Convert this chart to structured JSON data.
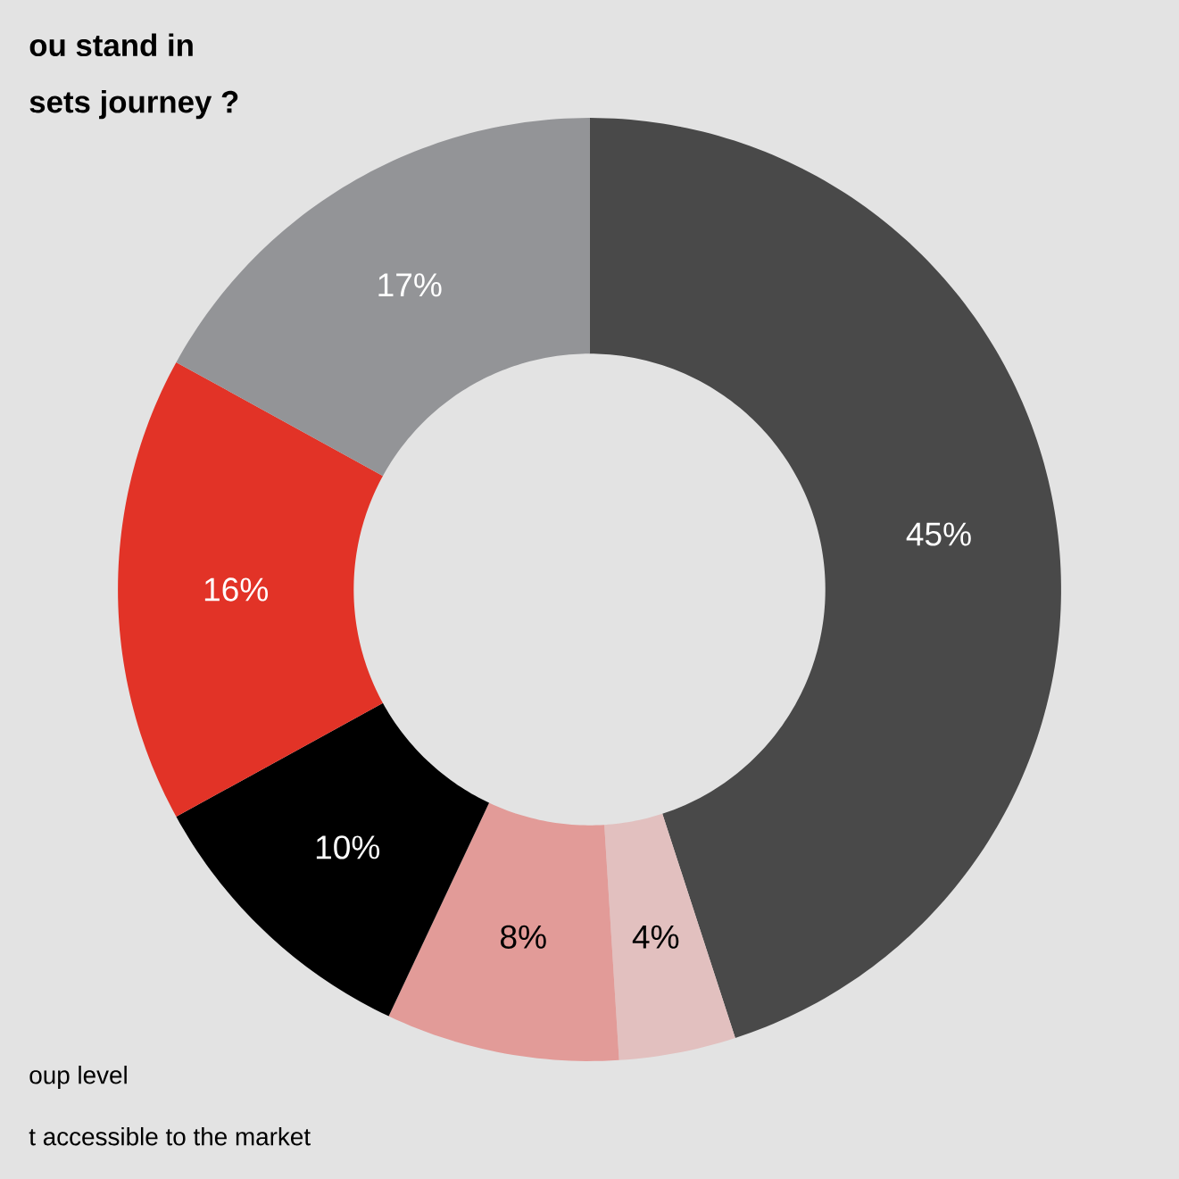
{
  "chart_data": {
    "type": "donut",
    "title": "ou stand in",
    "subtitle": "sets journey ?",
    "categories": [
      null,
      null,
      null,
      null,
      null,
      null
    ],
    "values": [
      45,
      4,
      8,
      10,
      16,
      17
    ],
    "colors": [
      "#494949",
      "#e2c0bf",
      "#e29b98",
      "#000000",
      "#e23327",
      "#939497"
    ],
    "value_labels": [
      "45%",
      "4%",
      "8%",
      "10%",
      "16%",
      "17%"
    ],
    "annotations": [
      "oup level",
      "t accessible to the market"
    ]
  }
}
